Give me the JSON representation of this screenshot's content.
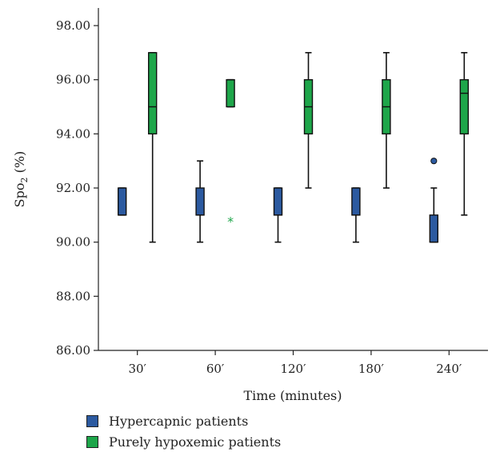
{
  "chart_data": {
    "type": "box",
    "xlabel": "Time (minutes)",
    "ylabel_main": "Spo",
    "ylabel_sub": "2",
    "ylabel_tail": " (%)",
    "ylim": [
      86,
      98
    ],
    "yticks": [
      "86.00",
      "88.00",
      "90.00",
      "92.00",
      "94.00",
      "96.00",
      "98.00"
    ],
    "categories": [
      "30′",
      "60′",
      "120′",
      "180′",
      "240′"
    ],
    "series": [
      {
        "name": "Hypercapnic patients",
        "color": "#2c5aa0",
        "boxes": [
          {
            "min": 91,
            "q1": 91,
            "median": 91,
            "q3": 92,
            "max": 92
          },
          {
            "min": 90,
            "q1": 91,
            "median": 91,
            "q3": 92,
            "max": 93
          },
          {
            "min": 90,
            "q1": 91,
            "median": 91,
            "q3": 92,
            "max": 92
          },
          {
            "min": 90,
            "q1": 91,
            "median": 91,
            "q3": 92,
            "max": 92
          },
          {
            "min": 90,
            "q1": 90,
            "median": 90,
            "q3": 91,
            "max": 92,
            "outliers": [
              93
            ]
          }
        ]
      },
      {
        "name": "Purely hypoxemic patients",
        "color": "#1ea64a",
        "boxes": [
          {
            "min": 90,
            "q1": 94,
            "median": 95,
            "q3": 97,
            "max": 97
          },
          {
            "min": 95,
            "q1": 95,
            "median": 96,
            "q3": 96,
            "max": 96,
            "extremes": [
              90.8
            ]
          },
          {
            "min": 92,
            "q1": 94,
            "median": 95,
            "q3": 96,
            "max": 97
          },
          {
            "min": 92,
            "q1": 94,
            "median": 95,
            "q3": 96,
            "max": 97
          },
          {
            "min": 91,
            "q1": 94,
            "median": 95.5,
            "q3": 96,
            "max": 97
          }
        ]
      }
    ],
    "legend_position": "bottom-left"
  }
}
